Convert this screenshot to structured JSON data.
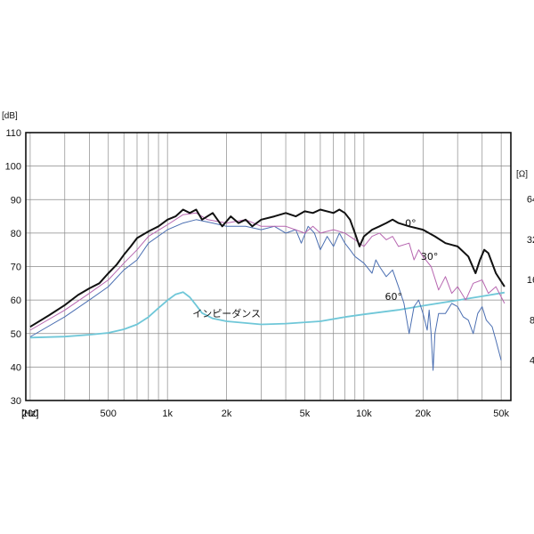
{
  "chart_data": {
    "type": "line",
    "title": "",
    "x_scale": "log",
    "xlim": [
      190,
      56000
    ],
    "ylim": [
      30,
      110
    ],
    "y2_scale": "log",
    "y2lim": [
      2,
      200
    ],
    "grid": true,
    "x_unit_label": "[Hz]",
    "y_unit_label": "[dB]",
    "y2_unit_label": "[Ω]",
    "x_tick_labels": [
      {
        "value": 200,
        "label": "200"
      },
      {
        "value": 500,
        "label": "500"
      },
      {
        "value": 1000,
        "label": "1k"
      },
      {
        "value": 2000,
        "label": "2k"
      },
      {
        "value": 5000,
        "label": "5k"
      },
      {
        "value": 10000,
        "label": "10k"
      },
      {
        "value": 20000,
        "label": "20k"
      },
      {
        "value": 50000,
        "label": "50k"
      }
    ],
    "y_ticks": [
      30,
      40,
      50,
      60,
      70,
      80,
      90,
      100,
      110
    ],
    "y2_tick_labels": [
      {
        "value": 64,
        "label": "64"
      },
      {
        "value": 32,
        "label": "32"
      },
      {
        "value": 16,
        "label": "16"
      },
      {
        "value": 8,
        "label": "8"
      },
      {
        "value": 4,
        "label": "4"
      }
    ],
    "series": [
      {
        "name": "0°",
        "color": "#111111",
        "width": 2,
        "axis": "left",
        "label_at": [
          16200,
          82
        ],
        "points": [
          [
            200,
            52
          ],
          [
            250,
            55.5
          ],
          [
            300,
            58.5
          ],
          [
            350,
            61.5
          ],
          [
            400,
            63.5
          ],
          [
            450,
            65
          ],
          [
            500,
            68
          ],
          [
            550,
            70.5
          ],
          [
            600,
            73.5
          ],
          [
            650,
            76
          ],
          [
            700,
            78.5
          ],
          [
            800,
            80.5
          ],
          [
            900,
            82
          ],
          [
            1000,
            84
          ],
          [
            1100,
            85
          ],
          [
            1200,
            87
          ],
          [
            1300,
            86
          ],
          [
            1400,
            87
          ],
          [
            1500,
            84
          ],
          [
            1700,
            86
          ],
          [
            1900,
            82
          ],
          [
            2100,
            85
          ],
          [
            2300,
            83
          ],
          [
            2500,
            84
          ],
          [
            2700,
            82
          ],
          [
            3000,
            84
          ],
          [
            3500,
            85
          ],
          [
            4000,
            86
          ],
          [
            4500,
            85
          ],
          [
            5000,
            86.5
          ],
          [
            5500,
            86
          ],
          [
            6000,
            87
          ],
          [
            7000,
            86
          ],
          [
            7500,
            87
          ],
          [
            8000,
            86
          ],
          [
            8500,
            84
          ],
          [
            9000,
            80
          ],
          [
            9500,
            76
          ],
          [
            10000,
            79
          ],
          [
            11000,
            81
          ],
          [
            12000,
            82
          ],
          [
            13000,
            83
          ],
          [
            14000,
            84
          ],
          [
            15000,
            83
          ],
          [
            17000,
            82
          ],
          [
            20000,
            81
          ],
          [
            23000,
            79
          ],
          [
            26000,
            77
          ],
          [
            30000,
            76
          ],
          [
            34000,
            73
          ],
          [
            37000,
            68
          ],
          [
            39000,
            72
          ],
          [
            41000,
            75
          ],
          [
            43000,
            74
          ],
          [
            47000,
            68
          ],
          [
            52000,
            64
          ]
        ]
      },
      {
        "name": "30°",
        "color": "#b766b0",
        "width": 1,
        "axis": "left",
        "label_at": [
          19500,
          72
        ],
        "points": [
          [
            200,
            51
          ],
          [
            300,
            57
          ],
          [
            400,
            62
          ],
          [
            500,
            66
          ],
          [
            600,
            71
          ],
          [
            700,
            75
          ],
          [
            800,
            79
          ],
          [
            1000,
            82.5
          ],
          [
            1200,
            85.5
          ],
          [
            1400,
            86
          ],
          [
            1600,
            84
          ],
          [
            2000,
            83
          ],
          [
            2500,
            84
          ],
          [
            3000,
            82
          ],
          [
            4000,
            82
          ],
          [
            5000,
            80
          ],
          [
            5500,
            82
          ],
          [
            6000,
            80
          ],
          [
            7000,
            81
          ],
          [
            8000,
            80
          ],
          [
            9000,
            78
          ],
          [
            10000,
            76
          ],
          [
            11000,
            79
          ],
          [
            12000,
            80
          ],
          [
            13000,
            78
          ],
          [
            14000,
            79
          ],
          [
            15000,
            76
          ],
          [
            17000,
            77
          ],
          [
            18000,
            72
          ],
          [
            19000,
            75
          ],
          [
            20000,
            73
          ],
          [
            22000,
            70
          ],
          [
            24000,
            63
          ],
          [
            26000,
            67
          ],
          [
            28000,
            62
          ],
          [
            30000,
            64
          ],
          [
            33000,
            60
          ],
          [
            36000,
            65
          ],
          [
            40000,
            66
          ],
          [
            43000,
            62
          ],
          [
            47000,
            64
          ],
          [
            52000,
            59
          ]
        ]
      },
      {
        "name": "60°",
        "color": "#4b6fb2",
        "width": 1,
        "axis": "left",
        "label_at": [
          12800,
          60
        ],
        "points": [
          [
            200,
            49
          ],
          [
            300,
            55
          ],
          [
            400,
            60
          ],
          [
            500,
            64
          ],
          [
            600,
            69
          ],
          [
            700,
            72
          ],
          [
            800,
            77
          ],
          [
            1000,
            81
          ],
          [
            1200,
            83
          ],
          [
            1400,
            84
          ],
          [
            1700,
            83
          ],
          [
            2000,
            82
          ],
          [
            2500,
            82
          ],
          [
            3000,
            81
          ],
          [
            3500,
            82
          ],
          [
            4000,
            80
          ],
          [
            4500,
            81
          ],
          [
            4800,
            77
          ],
          [
            5200,
            82
          ],
          [
            5600,
            80
          ],
          [
            6000,
            75
          ],
          [
            6500,
            79
          ],
          [
            7000,
            76
          ],
          [
            7500,
            80
          ],
          [
            8000,
            77
          ],
          [
            8500,
            75
          ],
          [
            9000,
            73
          ],
          [
            10000,
            71
          ],
          [
            11000,
            68
          ],
          [
            11500,
            72
          ],
          [
            12000,
            70
          ],
          [
            13000,
            67
          ],
          [
            14000,
            69
          ],
          [
            15000,
            64
          ],
          [
            16000,
            59
          ],
          [
            17000,
            50
          ],
          [
            18000,
            58
          ],
          [
            19000,
            60
          ],
          [
            20000,
            56
          ],
          [
            21000,
            51
          ],
          [
            21500,
            57
          ],
          [
            22000,
            50
          ],
          [
            22500,
            39
          ],
          [
            23000,
            50
          ],
          [
            24000,
            56
          ],
          [
            26000,
            56
          ],
          [
            28000,
            59
          ],
          [
            30000,
            58
          ],
          [
            32000,
            55
          ],
          [
            34000,
            54
          ],
          [
            36000,
            50
          ],
          [
            38000,
            56
          ],
          [
            40000,
            58
          ],
          [
            42000,
            54
          ],
          [
            45000,
            52
          ],
          [
            47000,
            48
          ],
          [
            50000,
            42
          ]
        ]
      },
      {
        "name": "インピーダンス",
        "color": "#6fc7d8",
        "width": 1.8,
        "axis": "right",
        "label_at": [
          2000,
          55
        ],
        "points": [
          [
            200,
            5.9
          ],
          [
            300,
            6.0
          ],
          [
            400,
            6.2
          ],
          [
            500,
            6.4
          ],
          [
            600,
            6.8
          ],
          [
            700,
            7.4
          ],
          [
            800,
            8.4
          ],
          [
            900,
            9.8
          ],
          [
            1000,
            11.2
          ],
          [
            1100,
            12.4
          ],
          [
            1200,
            12.9
          ],
          [
            1300,
            11.8
          ],
          [
            1400,
            10.3
          ],
          [
            1500,
            9.0
          ],
          [
            1700,
            8.2
          ],
          [
            2000,
            7.8
          ],
          [
            3000,
            7.4
          ],
          [
            4000,
            7.5
          ],
          [
            6000,
            7.8
          ],
          [
            8000,
            8.4
          ],
          [
            10000,
            8.8
          ],
          [
            15000,
            9.5
          ],
          [
            20000,
            10.2
          ],
          [
            30000,
            11.2
          ],
          [
            40000,
            12.0
          ],
          [
            52000,
            12.8
          ]
        ]
      }
    ]
  }
}
